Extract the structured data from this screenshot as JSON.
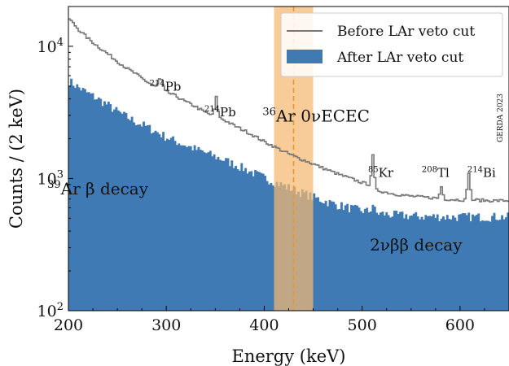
{
  "chart_data": {
    "type": "step-histogram",
    "xlabel": "Energy (keV)",
    "ylabel": "Counts / (2 keV)",
    "xlim": [
      200,
      650
    ],
    "ylim": [
      100,
      20000
    ],
    "yscale": "log",
    "x_ticks": [
      {
        "value": 200,
        "label": "200"
      },
      {
        "value": 300,
        "label": "300"
      },
      {
        "value": 400,
        "label": "400"
      },
      {
        "value": 500,
        "label": "500"
      },
      {
        "value": 600,
        "label": "600"
      }
    ],
    "y_ticks": [
      {
        "value": 100,
        "base": "10",
        "exp": "2"
      },
      {
        "value": 1000,
        "base": "10",
        "exp": "3"
      },
      {
        "value": 10000,
        "base": "10",
        "exp": "4"
      }
    ],
    "legend": {
      "position": "top-right",
      "before_label": "Before LAr veto cut",
      "after_label": "After LAr veto cut"
    },
    "colors": {
      "before": "#777777",
      "after": "#3f7ab5",
      "band": "#f4b870",
      "line": "#e8972e"
    },
    "series": [
      {
        "name": "Before LAr veto cut",
        "points": [
          [
            200,
            16500
          ],
          [
            210,
            13500
          ],
          [
            220,
            11500
          ],
          [
            230,
            10000
          ],
          [
            240,
            8800
          ],
          [
            250,
            7700
          ],
          [
            260,
            6800
          ],
          [
            270,
            6100
          ],
          [
            280,
            5400
          ],
          [
            290,
            4900
          ],
          [
            294,
            5900
          ],
          [
            298,
            4600
          ],
          [
            310,
            4200
          ],
          [
            320,
            3800
          ],
          [
            330,
            3500
          ],
          [
            340,
            3150
          ],
          [
            348,
            3000
          ],
          [
            351,
            4100
          ],
          [
            354,
            2900
          ],
          [
            360,
            2750
          ],
          [
            370,
            2500
          ],
          [
            380,
            2300
          ],
          [
            390,
            2100
          ],
          [
            400,
            1900
          ],
          [
            410,
            1750
          ],
          [
            420,
            1600
          ],
          [
            430,
            1480
          ],
          [
            440,
            1380
          ],
          [
            450,
            1290
          ],
          [
            460,
            1200
          ],
          [
            470,
            1120
          ],
          [
            480,
            1050
          ],
          [
            490,
            990
          ],
          [
            500,
            930
          ],
          [
            508,
            900
          ],
          [
            511,
            1480
          ],
          [
            514,
            820
          ],
          [
            520,
            800
          ],
          [
            530,
            770
          ],
          [
            540,
            750
          ],
          [
            550,
            735
          ],
          [
            560,
            725
          ],
          [
            570,
            715
          ],
          [
            578,
            710
          ],
          [
            581,
            870
          ],
          [
            584,
            700
          ],
          [
            590,
            695
          ],
          [
            600,
            690
          ],
          [
            606,
            690
          ],
          [
            609,
            1120
          ],
          [
            612,
            690
          ],
          [
            620,
            685
          ],
          [
            630,
            680
          ],
          [
            640,
            680
          ],
          [
            650,
            680
          ]
        ]
      },
      {
        "name": "After LAr veto cut",
        "points": [
          [
            200,
            5500
          ],
          [
            210,
            4900
          ],
          [
            220,
            4400
          ],
          [
            230,
            4000
          ],
          [
            240,
            3600
          ],
          [
            250,
            3200
          ],
          [
            260,
            2900
          ],
          [
            270,
            2650
          ],
          [
            280,
            2450
          ],
          [
            290,
            2250
          ],
          [
            300,
            2050
          ],
          [
            310,
            1900
          ],
          [
            320,
            1780
          ],
          [
            330,
            1660
          ],
          [
            340,
            1560
          ],
          [
            350,
            1460
          ],
          [
            360,
            1370
          ],
          [
            370,
            1270
          ],
          [
            380,
            1180
          ],
          [
            390,
            1090
          ],
          [
            400,
            1010
          ],
          [
            410,
            940
          ],
          [
            420,
            880
          ],
          [
            430,
            820
          ],
          [
            440,
            770
          ],
          [
            450,
            720
          ],
          [
            460,
            680
          ],
          [
            470,
            645
          ],
          [
            480,
            615
          ],
          [
            490,
            590
          ],
          [
            500,
            570
          ],
          [
            508,
            560
          ],
          [
            511,
            640
          ],
          [
            514,
            545
          ],
          [
            520,
            540
          ],
          [
            530,
            530
          ],
          [
            540,
            525
          ],
          [
            550,
            520
          ],
          [
            560,
            515
          ],
          [
            570,
            515
          ],
          [
            580,
            512
          ],
          [
            590,
            510
          ],
          [
            600,
            510
          ],
          [
            610,
            512
          ],
          [
            620,
            510
          ],
          [
            630,
            510
          ],
          [
            640,
            512
          ],
          [
            650,
            510
          ]
        ]
      }
    ],
    "roi_band": {
      "x_start": 410,
      "x_end": 450,
      "line_x": 430
    },
    "annotations": [
      {
        "key": "pb214_1",
        "x": 299,
        "y": 4600,
        "sup": "214",
        "text": "Pb",
        "size": "small"
      },
      {
        "key": "pb214_2",
        "x": 355,
        "y": 2950,
        "sup": "214",
        "text": "Pb",
        "size": "small"
      },
      {
        "key": "kr85",
        "x": 519,
        "y": 1030,
        "sup": "85",
        "text": "Kr",
        "size": "small"
      },
      {
        "key": "tl208",
        "x": 575,
        "y": 1030,
        "sup": "208",
        "text": "Tl",
        "size": "small"
      },
      {
        "key": "bi214",
        "x": 622,
        "y": 1030,
        "sup": "214",
        "text": "Bi",
        "size": "small"
      },
      {
        "key": "ar39",
        "x": 230,
        "y": 760,
        "sup": "39",
        "text": "Ar β decay",
        "size": "large"
      },
      {
        "key": "ar36",
        "x": 453,
        "y": 2700,
        "sup": "36",
        "text": "Ar 0νECEC",
        "size": "large",
        "color": "#e8972e"
      },
      {
        "key": "twonubb",
        "x": 555,
        "y": 285,
        "sup": "",
        "text": "2νββ decay",
        "size": "large"
      }
    ],
    "watermark": "GERDA 2023"
  }
}
